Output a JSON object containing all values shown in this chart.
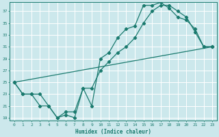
{
  "xlabel": "Humidex (Indice chaleur)",
  "background_color": "#cce8ec",
  "grid_color": "#ffffff",
  "line_color": "#1a7a6e",
  "xlim": [
    -0.5,
    23.5
  ],
  "ylim": [
    18.5,
    38.5
  ],
  "yticks": [
    19,
    21,
    23,
    25,
    27,
    29,
    31,
    33,
    35,
    37
  ],
  "xticks": [
    0,
    1,
    2,
    3,
    4,
    5,
    6,
    7,
    8,
    9,
    10,
    11,
    12,
    13,
    14,
    15,
    16,
    17,
    18,
    19,
    20,
    21,
    22,
    23
  ],
  "series1_x": [
    0,
    1,
    2,
    3,
    4,
    5,
    6,
    7,
    8,
    9,
    10,
    11,
    12,
    13,
    14,
    15,
    16,
    17,
    18,
    19,
    20,
    21,
    22,
    23
  ],
  "series1_y": [
    25,
    23,
    23,
    21,
    21,
    19,
    19.5,
    19,
    24,
    21,
    29,
    30,
    32.5,
    34,
    34.5,
    38,
    38,
    38.5,
    37.5,
    36,
    35.5,
    34,
    31,
    31
  ],
  "series2_x": [
    0,
    1,
    2,
    3,
    4,
    5,
    6,
    7,
    8,
    9,
    10,
    11,
    12,
    13,
    14,
    15,
    16,
    17,
    18,
    19,
    20,
    21,
    22,
    23
  ],
  "series2_y": [
    25,
    23,
    23,
    23,
    21,
    19,
    20,
    20,
    24,
    24,
    27,
    28.5,
    30,
    31,
    32.5,
    35,
    37,
    38,
    38,
    37,
    36,
    33.5,
    31,
    31
  ],
  "series3_x": [
    0,
    23
  ],
  "series3_y": [
    25,
    31
  ],
  "figwidth": 3.2,
  "figheight": 2.0,
  "dpi": 100
}
